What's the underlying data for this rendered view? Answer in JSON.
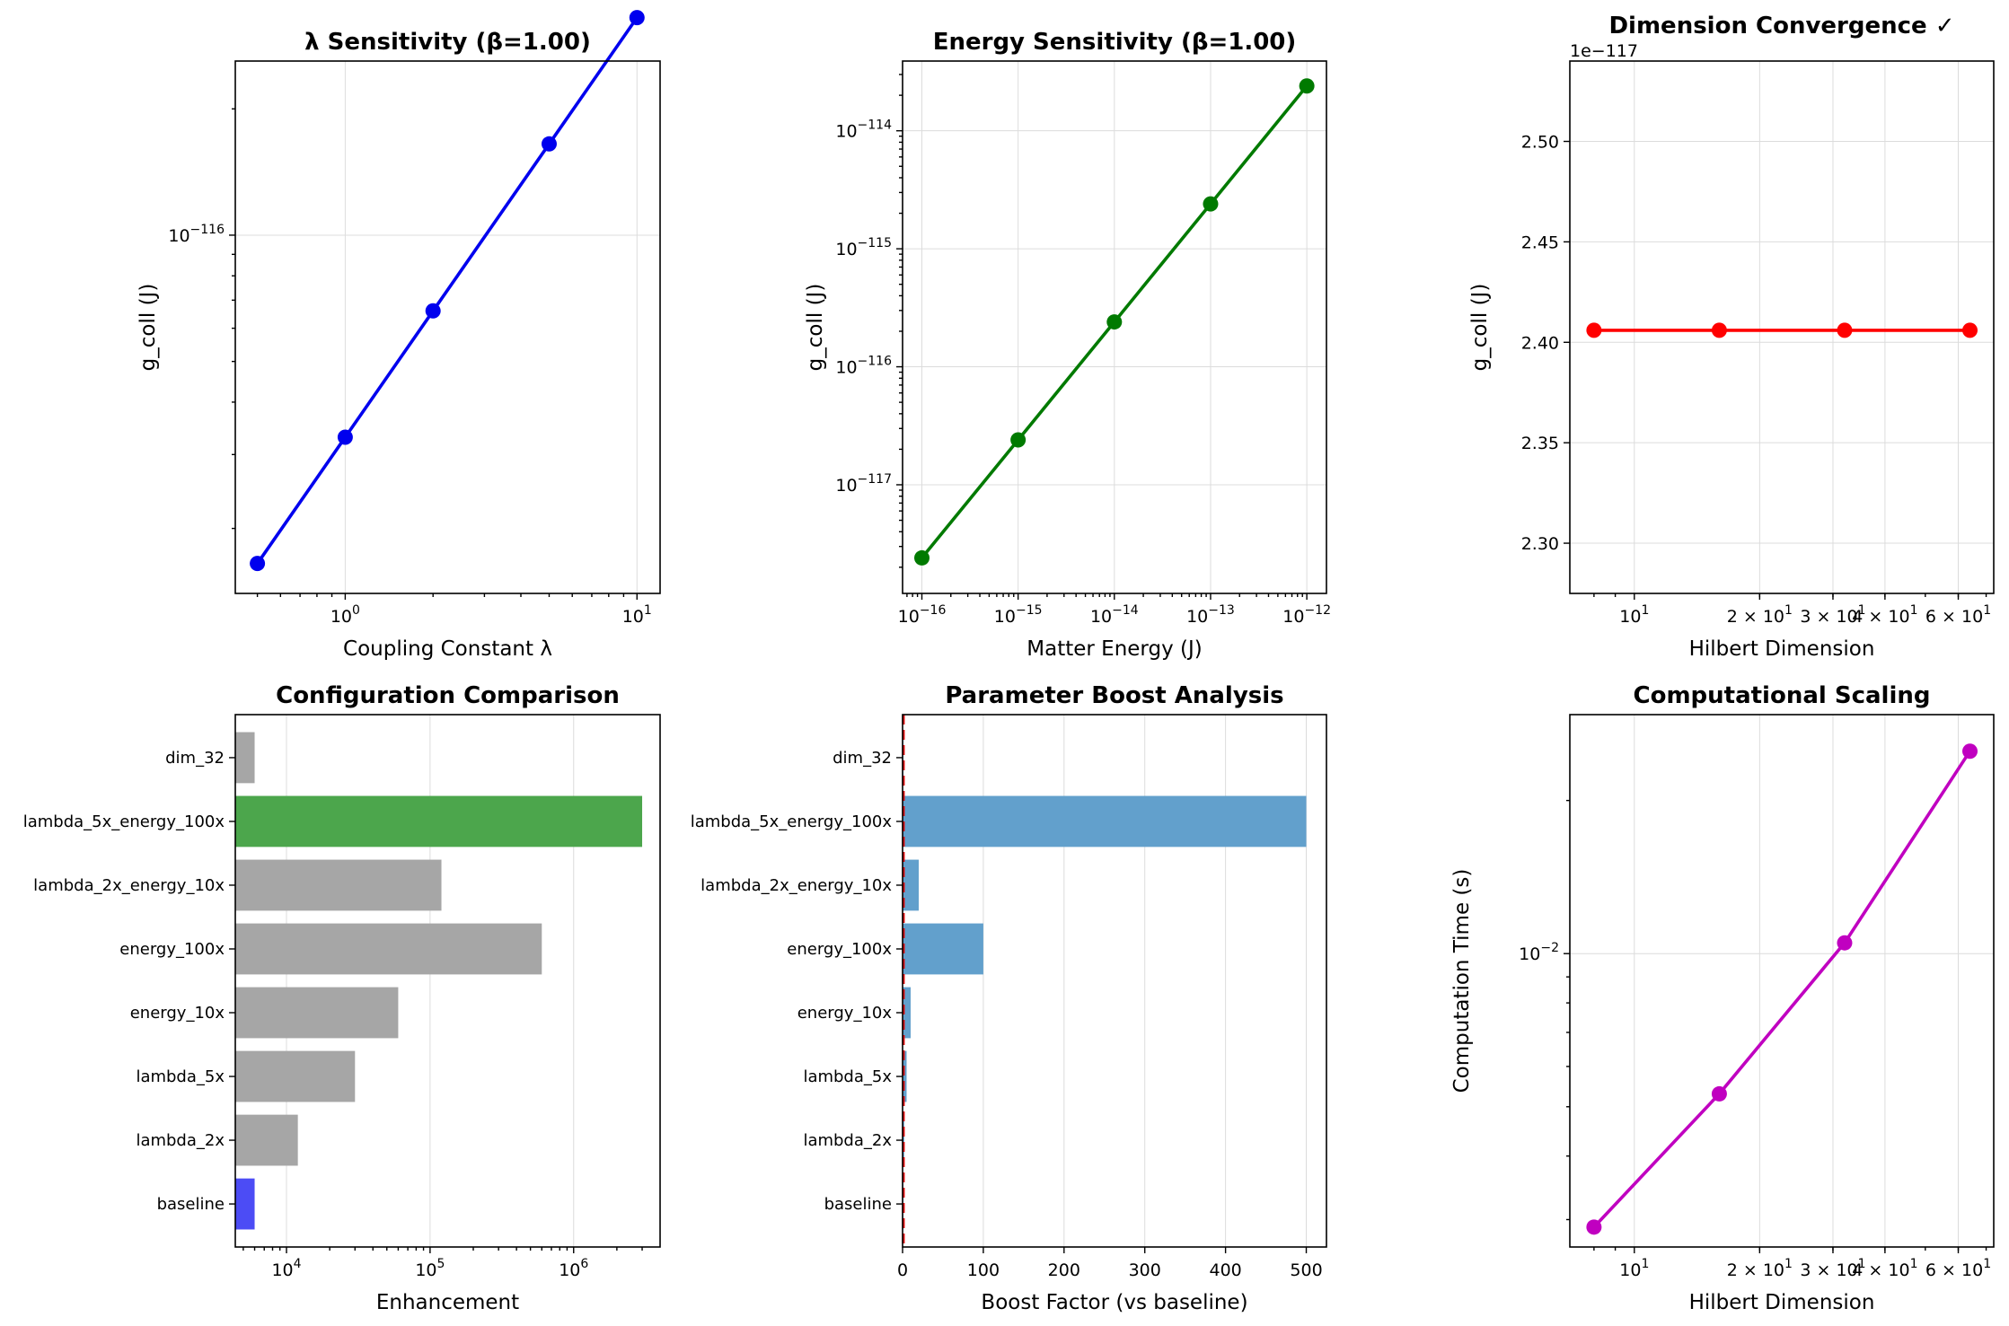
{
  "chart_data": [
    {
      "type": "line",
      "title": "λ Sensitivity (β=1.00)",
      "xlabel": "Coupling Constant λ",
      "ylabel": "g_coll (J)",
      "xscale": "log",
      "yscale": "log",
      "xlim": [
        0.42,
        12
      ],
      "ylim": [
        1.4e-117,
        2.6e-116
      ],
      "x": [
        0.5,
        1,
        2,
        5,
        10
      ],
      "y": [
        1.65e-117,
        3.3e-117,
        6.6e-117,
        1.65e-116,
        3.3e-116
      ],
      "color": "#0000ee",
      "xticks": [
        {
          "v": 1,
          "label": "10",
          "exp": "0"
        },
        {
          "v": 10,
          "label": "10",
          "exp": "1"
        }
      ],
      "yticks": [
        {
          "v": 1e-116,
          "label": "10",
          "exp": "−116"
        }
      ],
      "grid": true
    },
    {
      "type": "line",
      "title": "Energy Sensitivity (β=1.00)",
      "xlabel": "Matter Energy (J)",
      "ylabel": "g_coll (J)",
      "xscale": "log",
      "yscale": "log",
      "xlim": [
        6.3e-17,
        1.6e-12
      ],
      "ylim": [
        1.2e-118,
        3.9e-114
      ],
      "x": [
        1e-16,
        1e-15,
        1e-14,
        1e-13,
        1e-12
      ],
      "y": [
        2.4e-118,
        2.4e-117,
        2.4e-116,
        2.4e-115,
        2.4e-114
      ],
      "color": "#007a00",
      "xticks": [
        {
          "v": 1e-16,
          "label": "10",
          "exp": "−16"
        },
        {
          "v": 1e-15,
          "label": "10",
          "exp": "−15"
        },
        {
          "v": 1e-14,
          "label": "10",
          "exp": "−14"
        },
        {
          "v": 1e-13,
          "label": "10",
          "exp": "−13"
        },
        {
          "v": 1e-12,
          "label": "10",
          "exp": "−12"
        }
      ],
      "yticks": [
        {
          "v": 1e-117,
          "label": "10",
          "exp": "−117"
        },
        {
          "v": 1e-116,
          "label": "10",
          "exp": "−116"
        },
        {
          "v": 1e-115,
          "label": "10",
          "exp": "−115"
        },
        {
          "v": 1e-114,
          "label": "10",
          "exp": "−114"
        }
      ],
      "grid": true
    },
    {
      "type": "line",
      "title": "Dimension Convergence ✓",
      "offset_label": "1e−117",
      "xlabel": "Hilbert Dimension",
      "ylabel": "g_coll (J)",
      "xscale": "log",
      "yscale": "linear",
      "xlim": [
        7,
        73
      ],
      "ylim": [
        2.275,
        2.54
      ],
      "x": [
        8,
        16,
        32,
        64
      ],
      "y": [
        2.406,
        2.406,
        2.406,
        2.406
      ],
      "color": "#ff0000",
      "xticks": [
        {
          "v": 10,
          "label": "10",
          "exp": "1"
        },
        {
          "v": 20,
          "label": "2 × 10",
          "exp": "1"
        },
        {
          "v": 30,
          "label": "3 × 10",
          "exp": "1"
        },
        {
          "v": 40,
          "label": "4 × 10",
          "exp": "1"
        },
        {
          "v": 60,
          "label": "6 × 10",
          "exp": "1"
        }
      ],
      "yticks": [
        {
          "v": 2.3,
          "label": "2.30"
        },
        {
          "v": 2.35,
          "label": "2.35"
        },
        {
          "v": 2.4,
          "label": "2.40"
        },
        {
          "v": 2.45,
          "label": "2.45"
        },
        {
          "v": 2.5,
          "label": "2.50"
        }
      ],
      "grid": true
    },
    {
      "type": "bar",
      "orientation": "horizontal",
      "title": "Configuration Comparison",
      "xlabel": "Enhancement",
      "xscale": "log",
      "xlim": [
        4400,
        4000000
      ],
      "categories": [
        "baseline",
        "lambda_2x",
        "lambda_5x",
        "energy_10x",
        "energy_100x",
        "lambda_2x_energy_10x",
        "lambda_5x_energy_100x",
        "dim_32"
      ],
      "values": [
        6000,
        12000,
        30000,
        60000,
        600000,
        120000,
        3000000,
        6000
      ],
      "colors": [
        "#4c4cf5",
        "#a6a6a6",
        "#a6a6a6",
        "#a6a6a6",
        "#a6a6a6",
        "#a6a6a6",
        "#4ca64c",
        "#a6a6a6"
      ],
      "xticks": [
        {
          "v": 10000,
          "label": "10",
          "exp": "4"
        },
        {
          "v": 100000,
          "label": "10",
          "exp": "5"
        },
        {
          "v": 1000000,
          "label": "10",
          "exp": "6"
        }
      ],
      "grid": true
    },
    {
      "type": "bar",
      "orientation": "horizontal",
      "title": "Parameter Boost Analysis",
      "xlabel": "Boost Factor (vs baseline)",
      "xscale": "linear",
      "xlim": [
        0,
        525
      ],
      "categories": [
        "baseline",
        "lambda_2x",
        "lambda_5x",
        "energy_10x",
        "energy_100x",
        "lambda_2x_energy_10x",
        "lambda_5x_energy_100x",
        "dim_32"
      ],
      "values": [
        1,
        2,
        5,
        10,
        100,
        20,
        500,
        1
      ],
      "color": "#62a0cc",
      "reference_line": {
        "x": 1,
        "color": "#dd0000",
        "style": "dashed"
      },
      "xticks": [
        {
          "v": 0,
          "label": "0"
        },
        {
          "v": 100,
          "label": "100"
        },
        {
          "v": 200,
          "label": "200"
        },
        {
          "v": 300,
          "label": "300"
        },
        {
          "v": 400,
          "label": "400"
        },
        {
          "v": 500,
          "label": "500"
        }
      ],
      "grid": true
    },
    {
      "type": "line",
      "title": "Computational Scaling",
      "xlabel": "Hilbert Dimension",
      "ylabel": "Computation Time (s)",
      "xscale": "log",
      "yscale": "log",
      "xlim": [
        7,
        73
      ],
      "ylim": [
        0.00265,
        0.0295
      ],
      "x": [
        8,
        16,
        32,
        64
      ],
      "y": [
        0.0029,
        0.0053,
        0.0105,
        0.025
      ],
      "color": "#c000c0",
      "xticks": [
        {
          "v": 10,
          "label": "10",
          "exp": "1"
        },
        {
          "v": 20,
          "label": "2 × 10",
          "exp": "1"
        },
        {
          "v": 30,
          "label": "3 × 10",
          "exp": "1"
        },
        {
          "v": 40,
          "label": "4 × 10",
          "exp": "1"
        },
        {
          "v": 60,
          "label": "6 × 10",
          "exp": "1"
        }
      ],
      "yticks": [
        {
          "v": 0.01,
          "label": "10",
          "exp": "−2"
        }
      ],
      "grid": true
    }
  ]
}
